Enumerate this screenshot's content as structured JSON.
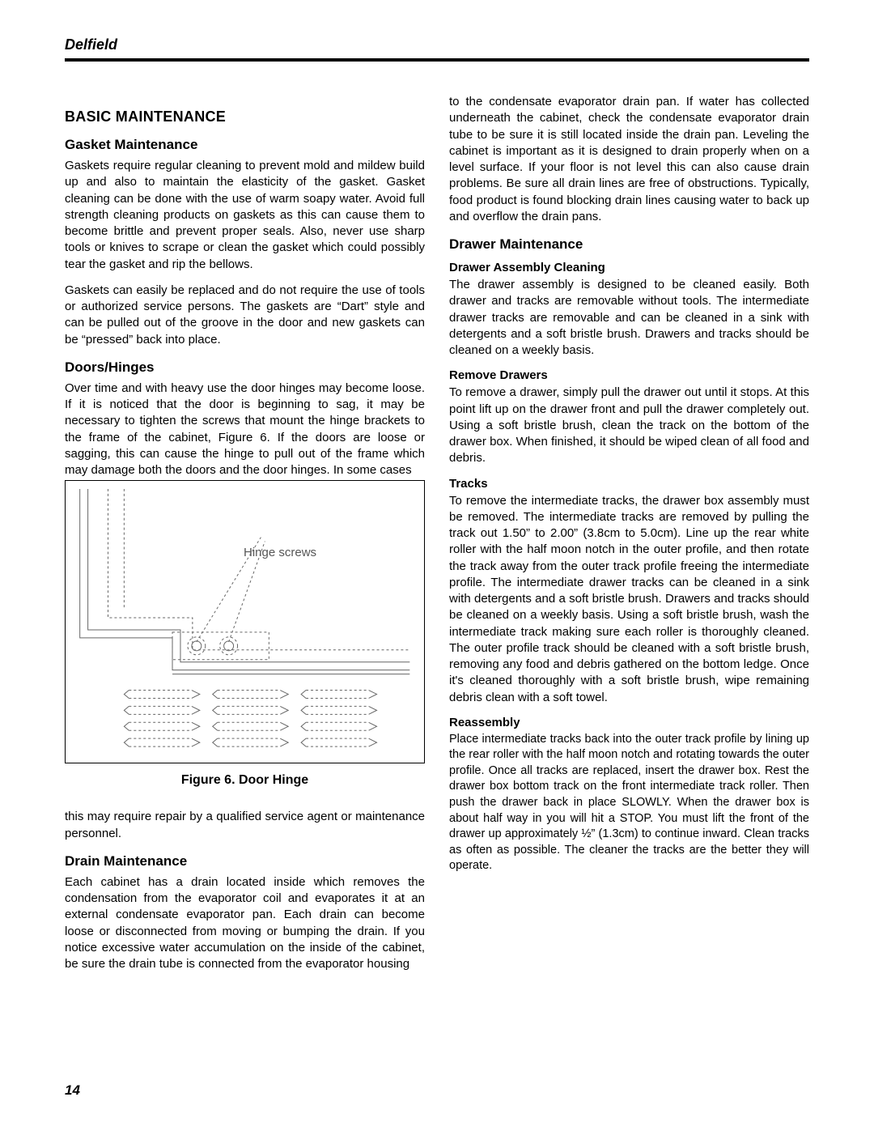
{
  "header": {
    "brand": "Delfield"
  },
  "page_number": "14",
  "left": {
    "h_basic": "BASIC MAINTENANCE",
    "h_gasket": "Gasket Maintenance",
    "p_gasket1": "Gaskets require regular cleaning to prevent mold and mildew build up and also to maintain the elasticity of the gasket. Gasket cleaning can be done with the use of warm soapy water. Avoid full strength cleaning products on gaskets as this can cause them to become brittle and prevent proper seals. Also, never use sharp tools or knives to scrape or clean the gasket which could possibly tear the gasket and rip the bellows.",
    "p_gasket2": "Gaskets can easily be replaced and do not require the use of tools or authorized service persons. The gaskets are “Dart” style and can be pulled out of the groove in the door and new gaskets can be “pressed” back into place.",
    "h_doors": "Doors/Hinges",
    "p_doors1": "Over time and with heavy use the door hinges may become loose. If it is noticed that the door is beginning to sag, it may be necessary to tighten the screws that mount the hinge brackets to the frame of the cabinet, Figure 6. If the doors are loose or sagging, this can cause the hinge to pull out of the frame which may damage both the doors and the door hinges. In some cases",
    "fig_label": "Hinge screws",
    "fig_caption": "Figure 6.  Door Hinge",
    "p_doors2": "this may require repair by a qualified service agent or maintenance personnel.",
    "h_drain": "Drain Maintenance",
    "p_drain": "Each cabinet has a drain located inside which removes the condensation from the evaporator coil and evaporates it at an external condensate evaporator pan. Each drain can become loose or disconnected from moving or bumping the drain. If you notice excessive water accumulation on the inside of the cabinet, be sure the drain tube is connected from the evaporator housing"
  },
  "right": {
    "p_drain_cont": "to the condensate evaporator drain pan. If water has collected underneath the cabinet, check the condensate evaporator drain tube to be sure it is still located inside the drain pan. Leveling the cabinet is important as it is designed to drain properly when on a level surface. If your floor is not level this can also cause drain problems. Be sure all drain lines are free of obstructions. Typically, food product is found blocking drain lines causing water to back up and overflow the drain pans.",
    "h_drawer": "Drawer Maintenance",
    "h_assembly": "Drawer Assembly Cleaning",
    "p_assembly": "The drawer assembly is designed to be cleaned easily. Both drawer and tracks are removable without tools. The intermediate drawer tracks are removable and can be cleaned in a sink with detergents and a soft bristle brush. Drawers and tracks should be cleaned on a weekly basis.",
    "h_remove": "Remove Drawers",
    "p_remove": "To remove a drawer, simply pull the drawer out until it stops. At this point lift up on the drawer front and pull the drawer completely out. Using a soft bristle brush, clean the track on the bottom of the drawer box. When finished, it should be wiped clean of all food and debris.",
    "h_tracks": "Tracks",
    "p_tracks": "To remove the intermediate tracks, the drawer box assembly must be removed. The intermediate tracks are removed by pulling the track out 1.50” to 2.00” (3.8cm to 5.0cm). Line up the rear white roller with the half moon notch in the outer profile, and then rotate the track away from the outer track profile freeing the intermediate profile. The intermediate drawer tracks can be cleaned in a sink with detergents and a soft bristle brush. Drawers and tracks should be cleaned on a weekly basis. Using a soft bristle brush, wash the intermediate track making sure each roller is thoroughly cleaned. The outer profile track should be cleaned with a soft bristle brush, removing any food and debris gathered on the bottom ledge. Once it's cleaned thoroughly with a soft bristle brush, wipe remaining debris clean with a soft towel.",
    "h_reassembly": "Reassembly",
    "p_reassembly": "Place intermediate tracks back into the outer track profile by lining up the rear roller with the half moon notch and rotating towards the outer profile. Once all tracks are replaced, insert the drawer box. Rest the drawer box bottom track on the front intermediate track roller. Then push the drawer back in place SLOWLY. When the drawer box is about half way in you will hit a STOP. You must lift the front of the drawer up approximately ½” (1.3cm) to continue inward. Clean tracks as often as possible. The cleaner the tracks are the better they will operate."
  },
  "figure": {
    "stroke": "#666666",
    "dash": "3,3",
    "arrow_rows_y": [
      265,
      285,
      305,
      325
    ],
    "arrow_cols_x": [
      60,
      170,
      280
    ],
    "arrow_len": 90
  }
}
